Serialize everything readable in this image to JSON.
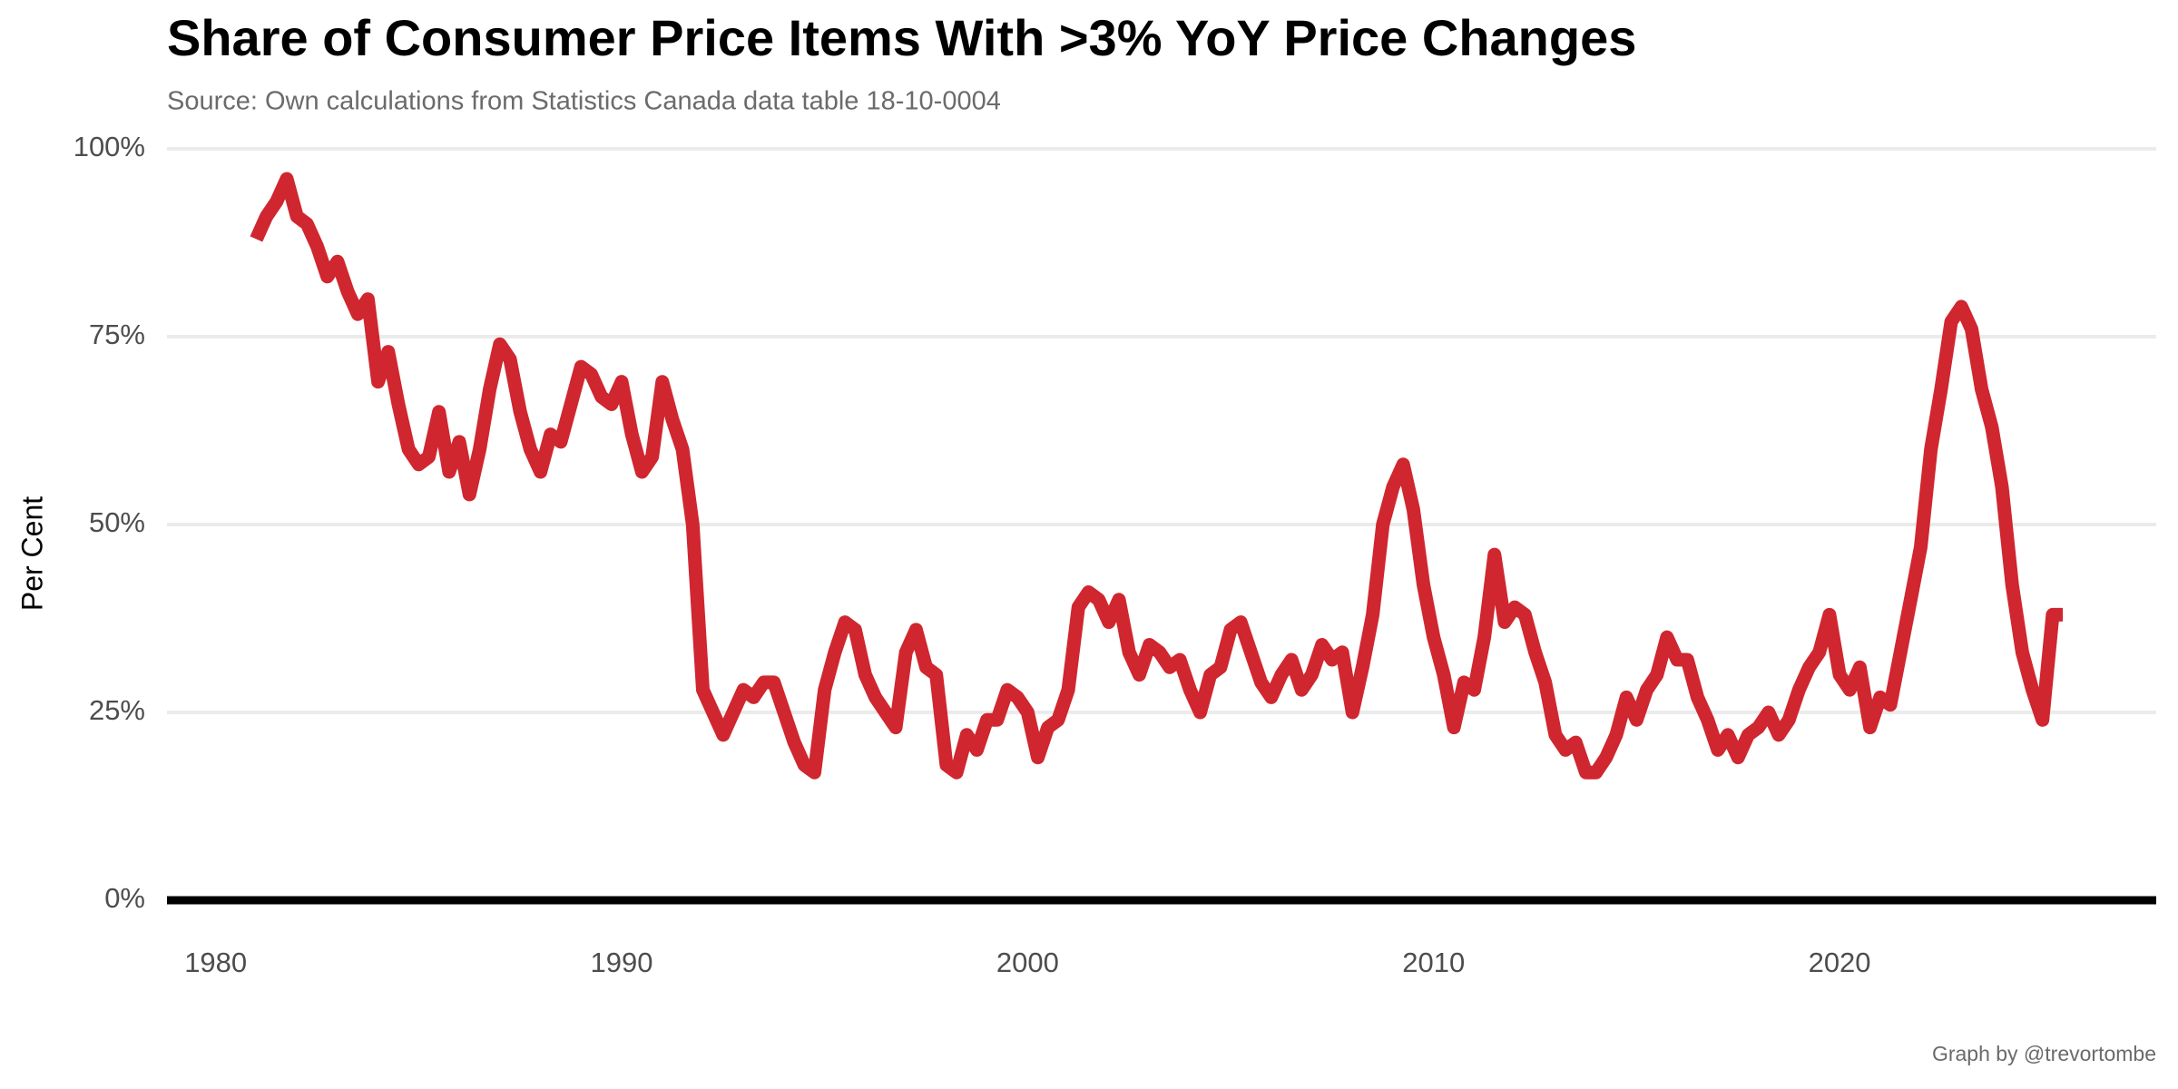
{
  "chart_data": {
    "type": "line",
    "title": "Share of Consumer Price Items With >3% YoY Price Changes",
    "subtitle": "Source: Own calculations from Statistics Canada data table 18-10-0004",
    "y_label": "Per Cent",
    "caption": "Graph by @trevortombe",
    "xlim": [
      1978.8,
      2027.8
    ],
    "xticks": [
      1980,
      1990,
      2000,
      2010,
      2020
    ],
    "ylim": [
      0,
      100
    ],
    "yticks": [
      {
        "value": 0,
        "label": "0%"
      },
      {
        "value": 25,
        "label": "25%"
      },
      {
        "value": 50,
        "label": "50%"
      },
      {
        "value": 75,
        "label": "75%"
      },
      {
        "value": 100,
        "label": "100%"
      }
    ],
    "grid": true,
    "color": "#d0262f",
    "x": [
      1981,
      1981.25,
      1981.5,
      1981.75,
      1982,
      1982.25,
      1982.5,
      1982.75,
      1983,
      1983.25,
      1983.5,
      1983.75,
      1984,
      1984.25,
      1984.5,
      1984.75,
      1985,
      1985.25,
      1985.5,
      1985.75,
      1986,
      1986.25,
      1986.5,
      1986.75,
      1987,
      1987.25,
      1987.5,
      1987.75,
      1988,
      1988.25,
      1988.5,
      1988.75,
      1989,
      1989.25,
      1989.5,
      1989.75,
      1990,
      1990.25,
      1990.5,
      1990.75,
      1991,
      1991.25,
      1991.5,
      1991.75,
      1992,
      1992.25,
      1992.5,
      1992.75,
      1993,
      1993.25,
      1993.5,
      1993.75,
      1994,
      1994.25,
      1994.5,
      1994.75,
      1995,
      1995.25,
      1995.5,
      1995.75,
      1996,
      1996.25,
      1996.5,
      1996.75,
      1997,
      1997.25,
      1997.5,
      1997.75,
      1998,
      1998.25,
      1998.5,
      1998.75,
      1999,
      1999.25,
      1999.5,
      1999.75,
      2000,
      2000.25,
      2000.5,
      2000.75,
      2001,
      2001.25,
      2001.5,
      2001.75,
      2002,
      2002.25,
      2002.5,
      2002.75,
      2003,
      2003.25,
      2003.5,
      2003.75,
      2004,
      2004.25,
      2004.5,
      2004.75,
      2005,
      2005.25,
      2005.5,
      2005.75,
      2006,
      2006.25,
      2006.5,
      2006.75,
      2007,
      2007.25,
      2007.5,
      2007.75,
      2008,
      2008.25,
      2008.5,
      2008.75,
      2009,
      2009.25,
      2009.5,
      2009.75,
      2010,
      2010.25,
      2010.5,
      2010.75,
      2011,
      2011.25,
      2011.5,
      2011.75,
      2012,
      2012.25,
      2012.5,
      2012.75,
      2013,
      2013.25,
      2013.5,
      2013.75,
      2014,
      2014.25,
      2014.5,
      2014.75,
      2015,
      2015.25,
      2015.5,
      2015.75,
      2016,
      2016.25,
      2016.5,
      2016.75,
      2017,
      2017.25,
      2017.5,
      2017.75,
      2018,
      2018.25,
      2018.5,
      2018.75,
      2019,
      2019.25,
      2019.5,
      2019.75,
      2020,
      2020.25,
      2020.5,
      2020.75,
      2021,
      2021.25,
      2021.5,
      2021.75,
      2022,
      2022.25,
      2022.5,
      2022.75,
      2023,
      2023.25,
      2023.5,
      2023.75,
      2024,
      2024.25,
      2024.5,
      2024.75,
      2025,
      2025.25,
      2025.5
    ],
    "values": [
      88,
      91,
      93,
      96,
      91,
      90,
      87,
      83,
      85,
      81,
      78,
      80,
      69,
      73,
      66,
      60,
      58,
      59,
      65,
      57,
      61,
      54,
      60,
      68,
      74,
      72,
      65,
      60,
      57,
      62,
      61,
      66,
      71,
      70,
      67,
      66,
      69,
      62,
      57,
      59,
      69,
      64,
      60,
      50,
      28,
      25,
      22,
      25,
      28,
      27,
      29,
      29,
      25,
      21,
      18,
      17,
      28,
      33,
      37,
      36,
      30,
      27,
      25,
      23,
      33,
      36,
      31,
      30,
      18,
      17,
      22,
      20,
      24,
      24,
      28,
      27,
      25,
      19,
      23,
      24,
      28,
      39,
      41,
      40,
      37,
      40,
      33,
      30,
      34,
      33,
      31,
      32,
      28,
      25,
      30,
      31,
      36,
      37,
      33,
      29,
      27,
      30,
      32,
      28,
      30,
      34,
      32,
      33,
      25,
      31,
      38,
      50,
      55,
      58,
      52,
      42,
      35,
      30,
      23,
      29,
      28,
      35,
      46,
      37,
      39,
      38,
      33,
      29,
      22,
      20,
      21,
      17,
      17,
      19,
      22,
      27,
      24,
      28,
      30,
      35,
      32,
      32,
      27,
      24,
      20,
      22,
      19,
      22,
      23,
      25,
      22,
      24,
      28,
      31,
      33,
      38,
      30,
      28,
      31,
      23,
      27,
      26,
      33,
      40,
      47,
      60,
      68,
      77,
      79,
      76,
      68,
      63,
      55,
      42,
      33,
      28,
      24,
      38,
      38
    ]
  }
}
